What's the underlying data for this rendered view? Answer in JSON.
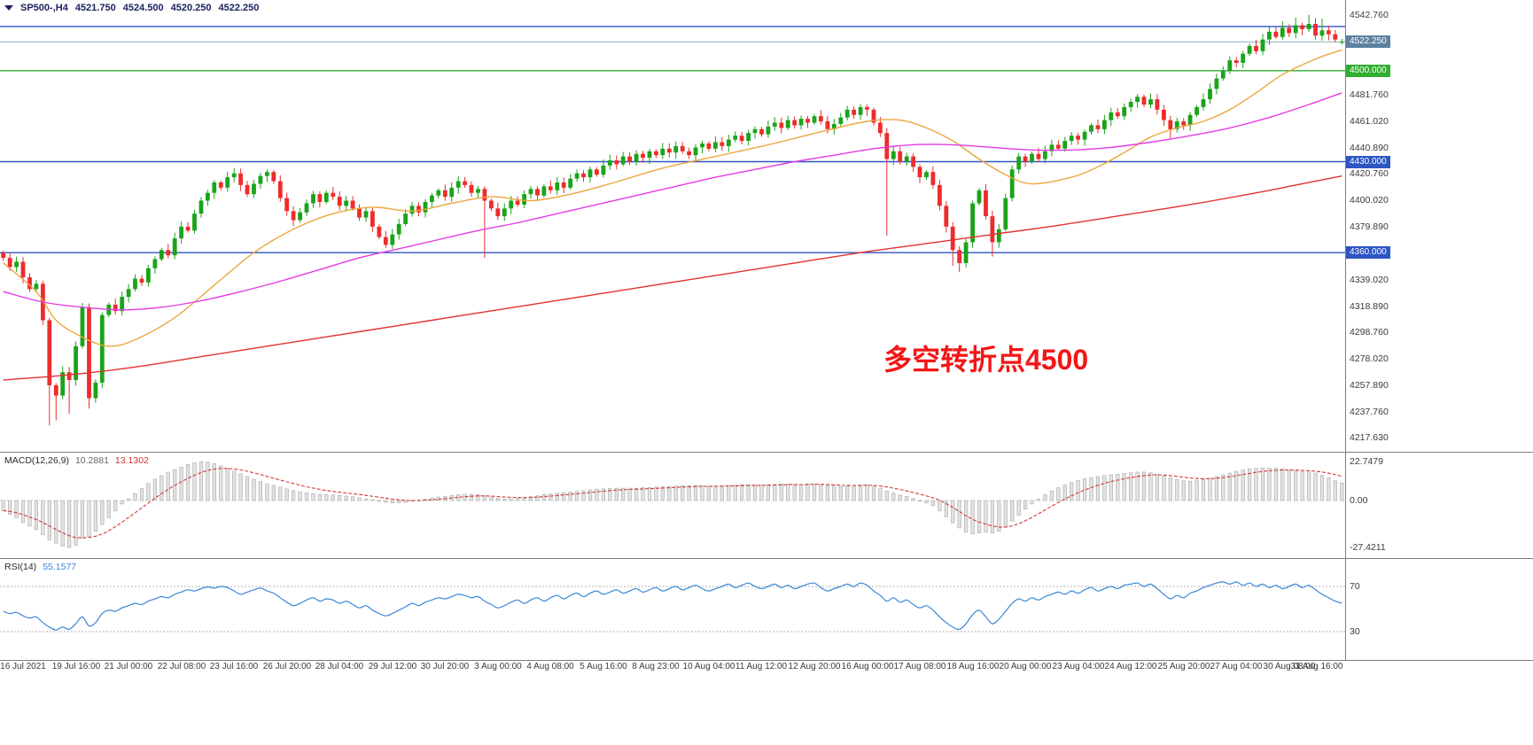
{
  "header": {
    "symbol": "SP500-,H4",
    "open": "4521.750",
    "high": "4524.500",
    "low": "4520.250",
    "close": "4522.250"
  },
  "annotation": {
    "text": "多空转折点4500"
  },
  "macd_panel": {
    "title": "MACD(12,26,9)",
    "value_main": "10.2881",
    "value_signal": "13.1302",
    "axis": [
      "22.7479",
      "0.00",
      "-27.4211"
    ]
  },
  "rsi_panel": {
    "title": "RSI(14)",
    "value": "55.1577",
    "axis": [
      "70",
      "30"
    ]
  },
  "colors": {
    "up": "#1ba31b",
    "down": "#ed2c2c",
    "ma_fast": "#eda63e",
    "ma_mid": "#e43be4",
    "ma_slow": "#e23232",
    "level_blue": "#2d55c4",
    "level_green": "#2fae2f",
    "price_line": "#94a8ba",
    "price_badge": "#5d81a0",
    "macd_hist_fill": "#e2e2e2",
    "macd_hist_stroke": "#a9a9a9",
    "macd_signal": "#d23a3a",
    "rsi_line": "#3a87d8"
  },
  "chart_data": [
    {
      "type": "candlestick",
      "title": "SP500- H4",
      "ylim": [
        4207,
        4554
      ],
      "y_ticks": [
        4542.76,
        4481.76,
        4461.02,
        4440.89,
        4420.76,
        4400.02,
        4379.89,
        4339.02,
        4318.89,
        4298.76,
        4278.02,
        4257.89,
        4237.76,
        4217.63
      ],
      "x_labels": [
        "16 Jul 2021",
        "19 Jul 16:00",
        "21 Jul 00:00",
        "22 Jul 08:00",
        "23 Jul 16:00",
        "26 Jul 20:00",
        "28 Jul 04:00",
        "29 Jul 12:00",
        "30 Jul 20:00",
        "3 Aug 00:00",
        "4 Aug 08:00",
        "5 Aug 16:00",
        "8 Aug 23:00",
        "10 Aug 04:00",
        "11 Aug 12:00",
        "12 Aug 20:00",
        "16 Aug 00:00",
        "17 Aug 08:00",
        "18 Aug 16:00",
        "20 Aug 00:00",
        "23 Aug 04:00",
        "24 Aug 12:00",
        "25 Aug 20:00",
        "27 Aug 04:00",
        "30 Aug 08:00",
        "31 Aug 16:00"
      ],
      "levels": [
        {
          "price": 4534.0,
          "style": "blue"
        },
        {
          "price": 4500.0,
          "style": "green",
          "label": "4500.000"
        },
        {
          "price": 4430.0,
          "style": "blue",
          "label": "4430.000"
        },
        {
          "price": 4360.0,
          "style": "blue",
          "label": "4360.000"
        },
        {
          "price": 4522.25,
          "style": "current",
          "label": "4522.250"
        }
      ],
      "first_open": 4360,
      "last_ohlc": [
        4521.75,
        4524.5,
        4520.25,
        4522.25
      ],
      "closes": [
        4356,
        4349,
        4353,
        4341,
        4332,
        4336,
        4308,
        4258,
        4250,
        4268,
        4262,
        4288,
        4318,
        4248,
        4260,
        4312,
        4320,
        4315,
        4326,
        4332,
        4340,
        4337,
        4348,
        4355,
        4362,
        4358,
        4371,
        4380,
        4377,
        4390,
        4400,
        4406,
        4414,
        4410,
        4418,
        4421,
        4412,
        4405,
        4413,
        4419,
        4422,
        4415,
        4402,
        4392,
        4385,
        4391,
        4398,
        4405,
        4399,
        4406,
        4403,
        4396,
        4400,
        4394,
        4387,
        4392,
        4380,
        4372,
        4366,
        4374,
        4382,
        4390,
        4396,
        4391,
        4399,
        4404,
        4408,
        4403,
        4410,
        4415,
        4412,
        4406,
        4409,
        4400,
        4394,
        4388,
        4394,
        4400,
        4397,
        4405,
        4409,
        4404,
        4411,
        4408,
        4414,
        4410,
        4417,
        4421,
        4418,
        4424,
        4420,
        4427,
        4431,
        4428,
        4434,
        4430,
        4436,
        4433,
        4438,
        4435,
        4440,
        4437,
        4442,
        4438,
        4435,
        4441,
        4444,
        4440,
        4445,
        4442,
        4447,
        4450,
        4446,
        4452,
        4455,
        4451,
        4457,
        4460,
        4456,
        4462,
        4458,
        4463,
        4460,
        4465,
        4461,
        4455,
        4459,
        4464,
        4470,
        4466,
        4472,
        4470,
        4460,
        4452,
        4432,
        4438,
        4430,
        4434,
        4426,
        4418,
        4422,
        4412,
        4396,
        4380,
        4362,
        4352,
        4368,
        4398,
        4408,
        4388,
        4368,
        4378,
        4402,
        4424,
        4434,
        4430,
        4436,
        4432,
        4438,
        4443,
        4440,
        4446,
        4450,
        4447,
        4453,
        4458,
        4455,
        4462,
        4468,
        4465,
        4472,
        4476,
        4480,
        4474,
        4478,
        4470,
        4462,
        4455,
        4461,
        4458,
        4466,
        4472,
        4478,
        4486,
        4494,
        4500,
        4508,
        4506,
        4513,
        4519,
        4515,
        4524,
        4530,
        4526,
        4533,
        4529,
        4535,
        4532,
        4536,
        4527,
        4531,
        4528,
        4524,
        4522.25
      ],
      "wick_lows": {
        "7": 4227,
        "8": 4231,
        "10": 4236,
        "13": 4240,
        "73": 4356,
        "134": 4373,
        "144": 4350,
        "145": 4345,
        "150": 4357,
        "177": 4448
      },
      "wick_highs": {
        "194": 4538,
        "196": 4541,
        "198": 4543,
        "200": 4540
      },
      "ma_fast_orange": [
        [
          0,
          4352
        ],
        [
          5,
          4330
        ],
        [
          8,
          4308
        ],
        [
          12,
          4295
        ],
        [
          16,
          4288
        ],
        [
          20,
          4293
        ],
        [
          26,
          4310
        ],
        [
          32,
          4335
        ],
        [
          38,
          4360
        ],
        [
          44,
          4378
        ],
        [
          50,
          4390
        ],
        [
          56,
          4395
        ],
        [
          62,
          4392
        ],
        [
          68,
          4398
        ],
        [
          74,
          4403
        ],
        [
          80,
          4400
        ],
        [
          86,
          4405
        ],
        [
          92,
          4413
        ],
        [
          100,
          4425
        ],
        [
          108,
          4434
        ],
        [
          116,
          4443
        ],
        [
          124,
          4453
        ],
        [
          131,
          4461
        ],
        [
          136,
          4462
        ],
        [
          140,
          4456
        ],
        [
          144,
          4446
        ],
        [
          148,
          4432
        ],
        [
          152,
          4420
        ],
        [
          156,
          4413
        ],
        [
          162,
          4418
        ],
        [
          166,
          4426
        ],
        [
          170,
          4437
        ],
        [
          174,
          4449
        ],
        [
          178,
          4456
        ],
        [
          182,
          4461
        ],
        [
          186,
          4470
        ],
        [
          190,
          4483
        ],
        [
          194,
          4497
        ],
        [
          199,
          4509
        ],
        [
          203,
          4516
        ]
      ],
      "ma_mid_magenta": [
        [
          0,
          4330
        ],
        [
          6,
          4322
        ],
        [
          12,
          4318
        ],
        [
          18,
          4316
        ],
        [
          24,
          4318
        ],
        [
          30,
          4323
        ],
        [
          36,
          4330
        ],
        [
          42,
          4338
        ],
        [
          48,
          4347
        ],
        [
          54,
          4356
        ],
        [
          60,
          4363
        ],
        [
          66,
          4370
        ],
        [
          72,
          4377
        ],
        [
          78,
          4383
        ],
        [
          84,
          4390
        ],
        [
          90,
          4397
        ],
        [
          96,
          4404
        ],
        [
          102,
          4411
        ],
        [
          108,
          4418
        ],
        [
          114,
          4424
        ],
        [
          120,
          4430
        ],
        [
          126,
          4435
        ],
        [
          132,
          4440
        ],
        [
          138,
          4443
        ],
        [
          144,
          4443
        ],
        [
          150,
          4441
        ],
        [
          156,
          4439
        ],
        [
          162,
          4439
        ],
        [
          168,
          4441
        ],
        [
          174,
          4445
        ],
        [
          180,
          4450
        ],
        [
          186,
          4456
        ],
        [
          192,
          4464
        ],
        [
          198,
          4474
        ],
        [
          203,
          4483
        ]
      ],
      "ma_slow_red": [
        [
          0,
          4262
        ],
        [
          10,
          4266
        ],
        [
          20,
          4272
        ],
        [
          30,
          4280
        ],
        [
          40,
          4288
        ],
        [
          50,
          4296
        ],
        [
          60,
          4304
        ],
        [
          70,
          4312
        ],
        [
          80,
          4320
        ],
        [
          90,
          4328
        ],
        [
          100,
          4336
        ],
        [
          110,
          4344
        ],
        [
          120,
          4352
        ],
        [
          130,
          4360
        ],
        [
          140,
          4367
        ],
        [
          150,
          4374
        ],
        [
          160,
          4381
        ],
        [
          170,
          4389
        ],
        [
          180,
          4397
        ],
        [
          190,
          4406
        ],
        [
          196,
          4412
        ],
        [
          203,
          4419
        ]
      ]
    },
    {
      "type": "bar",
      "name": "MACD(12,26,9)",
      "last_main": 10.2881,
      "last_signal": 13.1302,
      "ylim": [
        -27.4211,
        22.7479
      ],
      "values": [
        -6,
        -8,
        -10,
        -13,
        -15,
        -17,
        -20,
        -23,
        -25,
        -26.5,
        -27.4,
        -26,
        -22,
        -21,
        -18,
        -14,
        -10,
        -6,
        -2,
        1,
        4,
        7,
        10,
        12.5,
        14.5,
        16.5,
        18,
        19.5,
        21,
        22,
        22.7,
        22.4,
        21.5,
        20.2,
        18.8,
        17.2,
        15.6,
        14,
        12.4,
        11,
        9.8,
        8.8,
        7.8,
        6.8,
        5.8,
        5,
        4.4,
        4,
        3.6,
        3.4,
        3.2,
        3,
        2.6,
        2.2,
        1.6,
        1,
        0.4,
        -0.4,
        -1,
        -1.4,
        -1.4,
        -1,
        -0.4,
        0.2,
        0.8,
        1.4,
        2,
        2.5,
        3,
        3.4,
        3.6,
        3.6,
        3.4,
        2.8,
        2,
        1.4,
        1,
        1,
        1.2,
        1.6,
        2.2,
        2.8,
        3.4,
        3.8,
        4.2,
        4.6,
        5,
        5.4,
        5.8,
        6.2,
        6.6,
        6.8,
        7,
        7.2,
        7.2,
        7.2,
        7.2,
        7.4,
        7.6,
        7.8,
        8,
        8.2,
        8.4,
        8.6,
        8.8,
        8.8,
        8.6,
        8.4,
        8.4,
        8.6,
        8.8,
        9,
        9.2,
        9.2,
        9,
        9,
        9.2,
        9.4,
        9.6,
        9.6,
        9.4,
        9.4,
        9.6,
        9.8,
        9.4,
        8.8,
        8.4,
        8.2,
        8.4,
        8.6,
        9,
        9.2,
        8.4,
        7.2,
        5.6,
        4.4,
        3.2,
        2.4,
        1.2,
        -0.2,
        -1.4,
        -3,
        -6,
        -9.5,
        -13,
        -16,
        -18.5,
        -19.5,
        -19,
        -18.5,
        -19,
        -18,
        -15.5,
        -12,
        -8.5,
        -5,
        -2,
        0.8,
        3.4,
        5.6,
        7.4,
        9,
        10.4,
        11.6,
        12.6,
        13.4,
        14,
        14.6,
        15,
        15.4,
        15.8,
        16.2,
        16.6,
        16.6,
        16.2,
        15.4,
        14.4,
        13.2,
        12.2,
        11.6,
        11.4,
        11.6,
        12.2,
        13,
        14,
        15,
        16,
        17,
        17.8,
        18.4,
        18.8,
        19,
        19,
        18.8,
        18.4,
        17.8,
        17.4,
        17,
        16.6,
        16,
        14.8,
        13.2,
        11.6,
        10.29
      ]
    },
    {
      "type": "line",
      "name": "RSI(14)",
      "last": 55.1577,
      "levels": [
        70,
        30
      ],
      "ylim": [
        0,
        100
      ],
      "values": [
        48,
        46,
        47,
        44,
        42,
        43,
        38,
        34,
        31.5,
        34,
        32,
        37,
        43,
        35,
        38,
        46,
        49,
        48,
        51,
        53,
        55,
        54,
        57,
        59,
        61,
        60,
        63,
        65,
        67,
        66,
        68,
        69.5,
        68.5,
        70,
        69,
        66,
        63,
        65,
        67,
        68.5,
        66,
        64,
        60,
        56,
        53,
        55,
        58,
        60,
        57,
        59,
        58,
        55,
        57,
        54,
        51,
        53,
        49,
        46,
        44,
        46,
        49,
        52,
        55,
        53,
        56,
        58,
        60,
        59,
        61,
        63,
        62,
        60,
        61,
        57,
        54,
        51,
        53,
        56,
        58,
        55,
        58,
        60,
        57,
        60,
        62,
        59,
        62,
        64,
        61,
        64,
        66,
        63,
        65,
        67,
        64,
        66,
        68,
        65,
        67,
        69,
        66,
        68,
        70,
        67,
        69,
        71,
        68,
        66,
        68,
        70,
        72,
        69,
        71,
        73,
        70,
        68,
        70,
        72,
        69,
        71,
        68,
        70,
        72,
        73,
        69,
        66,
        68,
        70,
        72,
        70,
        73,
        71,
        66,
        62,
        57,
        60,
        56,
        58,
        54,
        51,
        53,
        49,
        43,
        38,
        34,
        32,
        37,
        45,
        49,
        43,
        37,
        41,
        48,
        55,
        59,
        57,
        60,
        58,
        61,
        63,
        65,
        63,
        66,
        64,
        67,
        69,
        66,
        68,
        70,
        68,
        71,
        72,
        73,
        70,
        72,
        68,
        63,
        59,
        62,
        60,
        64,
        66,
        69,
        71,
        73,
        74,
        72,
        74,
        71,
        73,
        70,
        72,
        69,
        71,
        68,
        70,
        72,
        69,
        71,
        67,
        63,
        60,
        57,
        55.16
      ]
    }
  ]
}
